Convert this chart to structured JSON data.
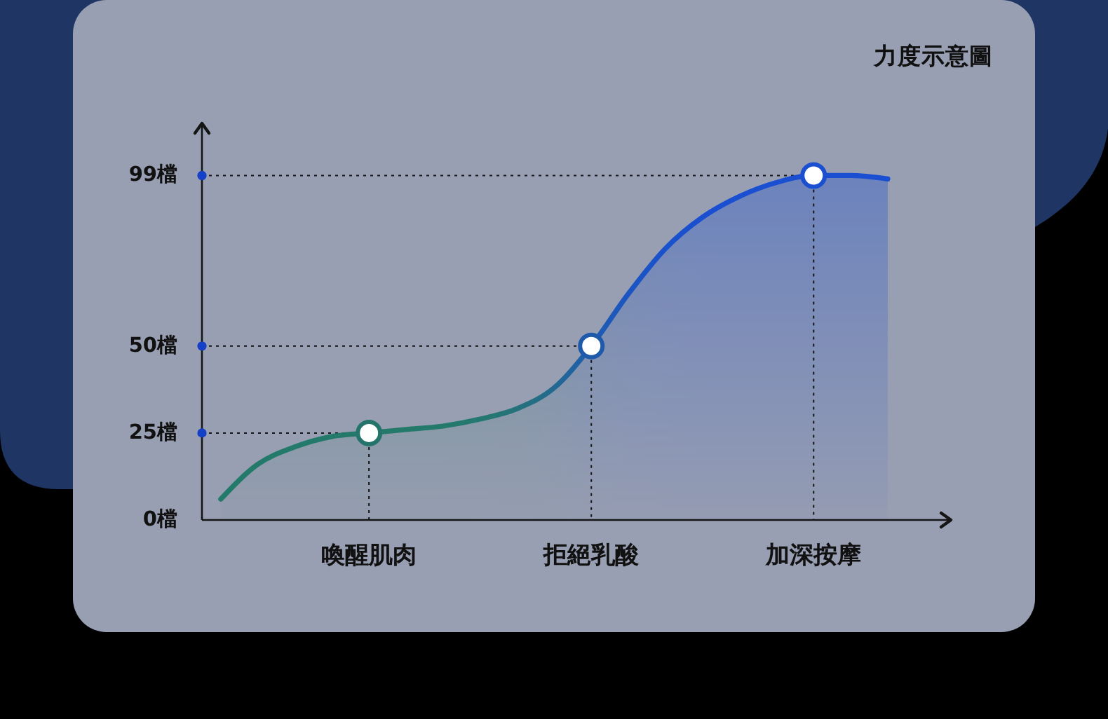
{
  "chart_data": {
    "type": "area",
    "title": "力度示意圖",
    "categories": [
      null,
      null,
      null,
      null,
      "喚醒肌肉",
      null,
      null,
      null,
      null,
      null,
      "拒絕乳酸",
      null,
      null,
      null,
      null,
      null,
      "加深按摩",
      null,
      null
    ],
    "ylim": [
      0,
      114
    ],
    "yticks": [
      {
        "value": 0,
        "label": "0檔"
      },
      {
        "value": 25,
        "label": "25檔"
      },
      {
        "value": 50,
        "label": "50檔"
      },
      {
        "value": 99,
        "label": "99檔"
      }
    ],
    "series": [
      {
        "values": [
          6,
          16,
          21,
          24,
          25,
          26,
          27,
          29,
          32,
          38,
          50,
          65,
          78,
          87,
          93,
          97,
          99,
          99,
          98
        ],
        "colors": [
          "#237a6b",
          "#237a6b",
          "#237a6b",
          "#237a6b",
          "#237a6b",
          "#237a6b",
          "#237a6b",
          "#247870",
          "#25727a",
          "#236990",
          "#1f5cb0",
          "#1c55c2",
          "#1a51cc",
          "#194fd0",
          "#194fd0",
          "#194fd0",
          "#194fd0",
          "#194fd0",
          "#194fd0"
        ]
      },
      {
        "type": "scatter",
        "marker": "circle",
        "x": [
          "喚醒肌肉",
          "拒絕乳酸",
          "加深按摩"
        ],
        "values": [
          25,
          50,
          99
        ],
        "colors": [
          "#25746c",
          "#1f5aaa",
          "#1a50d0"
        ]
      }
    ]
  }
}
